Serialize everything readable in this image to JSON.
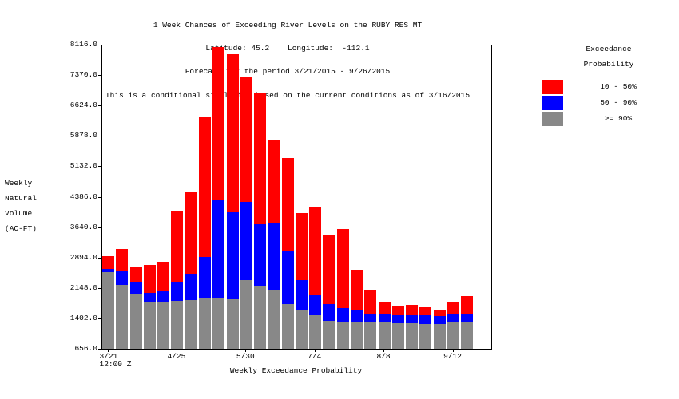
{
  "titles": {
    "line1": "1 Week Chances of Exceeding River Levels on the RUBY RES MT",
    "line2": "Latitude: 45.2    Longitude:  -112.1",
    "line3": "Forecast for the period 3/21/2015 - 9/26/2015",
    "line4": "This is a conditional simulation based on the current conditions as of 3/16/2015"
  },
  "y_axis_label": "Weekly\nNatural\nVolume\n(AC-FT)",
  "x_axis_title": "Weekly Exceedance Probability",
  "legend": {
    "title": "Exceedance\nProbability",
    "entries": [
      {
        "label": "10 - 50%",
        "color": "#ff0000"
      },
      {
        "label": "50 - 90%",
        "color": "#0000ff"
      },
      {
        "label": ">= 90%",
        "color": "#888888"
      }
    ]
  },
  "chart_data": {
    "type": "bar",
    "stacked": true,
    "title": "1 Week Chances of Exceeding River Levels on the RUBY RES MT",
    "xlabel": "Weekly Exceedance Probability",
    "ylabel": "Weekly Natural Volume (AC-FT)",
    "ylim": [
      656.0,
      8116.0
    ],
    "yticks": [
      8116.0,
      7370.0,
      6624.0,
      5878.0,
      5132.0,
      4386.0,
      3640.0,
      2894.0,
      2148.0,
      1402.0,
      656.0
    ],
    "baseline": 656.0,
    "n_bars": 27,
    "x_description": "27 weekly periods, 3/21/2015 12:00 Z through 9/26/2015",
    "xticks": [
      {
        "label": "3/21",
        "sublabel": "12:00 Z",
        "bar_index": 0
      },
      {
        "label": "4/25",
        "bar_index": 5
      },
      {
        "label": "5/30",
        "bar_index": 10
      },
      {
        "label": "7/4",
        "bar_index": 15
      },
      {
        "label": "8/8",
        "bar_index": 20
      },
      {
        "label": "9/12",
        "bar_index": 25
      }
    ],
    "series_note": "tops are cumulative stack-top levels in AC-FT (gray = >=90% band top, blue = 50-90% band top, red = 10-50% band top / bar total); all bars rise from baseline 656",
    "series": [
      {
        "name": "10 - 50%",
        "color": "#ff0000",
        "tops": [
          2930,
          3100,
          2650,
          2710,
          2800,
          4020,
          4510,
          6360,
          8050,
          7880,
          7320,
          6950,
          5770,
          5330,
          3980,
          4140,
          3440,
          3600,
          2590,
          2080,
          1820,
          1710,
          1730,
          1670,
          1620,
          1810,
          1950
        ]
      },
      {
        "name": "50 - 90%",
        "color": "#0000ff",
        "tops": [
          2610,
          2580,
          2280,
          2020,
          2070,
          2310,
          2490,
          2910,
          4300,
          4000,
          4250,
          3720,
          3730,
          3060,
          2340,
          1970,
          1760,
          1660,
          1590,
          1510,
          1500,
          1470,
          1470,
          1470,
          1450,
          1490,
          1490
        ]
      },
      {
        "name": ">= 90%",
        "color": "#888888",
        "tops": [
          2540,
          2220,
          2000,
          1810,
          1790,
          1840,
          1860,
          1890,
          1900,
          1880,
          2340,
          2200,
          2100,
          1750,
          1590,
          1480,
          1350,
          1330,
          1320,
          1320,
          1300,
          1280,
          1280,
          1270,
          1270,
          1300,
          1300
        ]
      }
    ]
  }
}
